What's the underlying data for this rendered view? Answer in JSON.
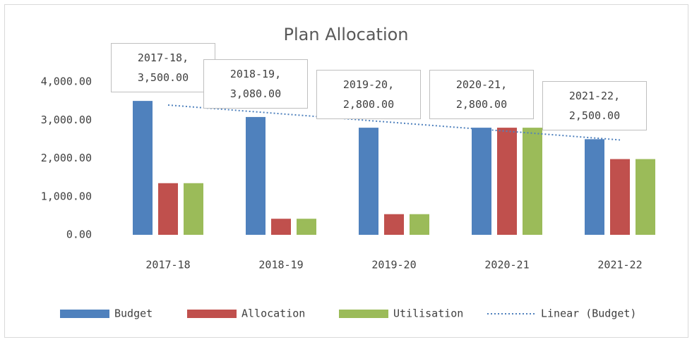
{
  "chart_data": {
    "type": "bar",
    "title": "Plan Allocation",
    "categories": [
      "2017-18",
      "2018-19",
      "2019-20",
      "2020-21",
      "2021-22"
    ],
    "series": [
      {
        "name": "Budget",
        "color": "#4f81bd",
        "values": [
          3500,
          3080,
          2800,
          2800,
          2500
        ],
        "value_labels": [
          "2017-18, 3,500.00",
          "2018-19, 3,080.00",
          "2019-20, 2,800.00",
          "2020-21, 2,800.00",
          "2021-22, 2,500.00"
        ]
      },
      {
        "name": "Allocation",
        "color": "#c0504d",
        "values": [
          1350,
          420,
          540,
          2800,
          1980
        ]
      },
      {
        "name": "Utilisation",
        "color": "#9bbb59",
        "values": [
          1350,
          420,
          540,
          2800,
          1980
        ]
      }
    ],
    "trendline": {
      "name": "Linear (Budget)",
      "color": "#4f81bd",
      "style": "dotted"
    },
    "ylim": [
      0,
      4000
    ],
    "yticks": [
      {
        "value": 0,
        "label": "0.00"
      },
      {
        "value": 1000,
        "label": "1,000.00"
      },
      {
        "value": 2000,
        "label": "2,000.00"
      },
      {
        "value": 3000,
        "label": "3,000.00"
      },
      {
        "value": 4000,
        "label": "4,000.00"
      }
    ],
    "grid": false,
    "legend": "bottom"
  }
}
